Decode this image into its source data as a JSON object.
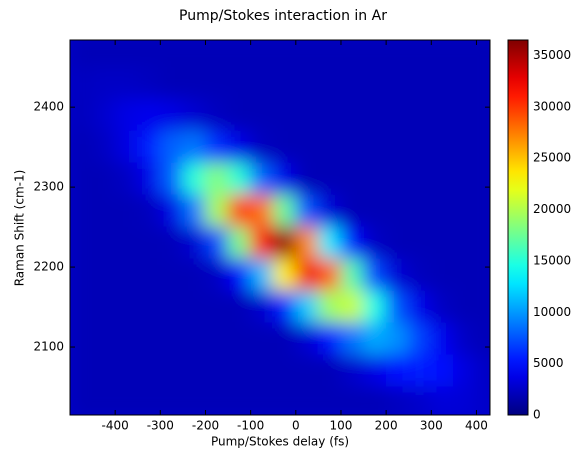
{
  "chart_data": {
    "type": "heatmap",
    "title": "Pump/Stokes interaction in Ar",
    "x_label": "Pump/Stokes delay (fs)",
    "y_label": "Raman Shift (cm-1)",
    "x": [
      -475,
      -425,
      -375,
      -325,
      -275,
      -225,
      -175,
      -125,
      -75,
      -25,
      25,
      75,
      125,
      175,
      225,
      275,
      325,
      375,
      425
    ],
    "y": [
      2470,
      2430,
      2390,
      2350,
      2310,
      2270,
      2230,
      2190,
      2150,
      2110,
      2070,
      2030
    ],
    "z": [
      [
        2000,
        2000,
        2000,
        2000,
        2000,
        2000,
        2000,
        2000,
        2000,
        2000,
        2000,
        2000,
        2000,
        2000,
        2000,
        2000,
        2000,
        2000,
        2000
      ],
      [
        2300,
        2500,
        2500,
        2300,
        2000,
        2000,
        2000,
        2000,
        2000,
        2000,
        2000,
        2000,
        2000,
        2000,
        2000,
        2000,
        2000,
        2000,
        2000
      ],
      [
        2200,
        2800,
        3600,
        3900,
        3600,
        2900,
        2300,
        2000,
        2000,
        2000,
        2000,
        2000,
        2000,
        2000,
        2000,
        2000,
        2000,
        2000,
        2000
      ],
      [
        2000,
        2400,
        3500,
        5500,
        8000,
        8800,
        6200,
        3700,
        2300,
        2000,
        2000,
        2000,
        2000,
        2000,
        2000,
        2000,
        2000,
        2000,
        2000
      ],
      [
        2000,
        2000,
        2400,
        3700,
        8000,
        15000,
        18400,
        15200,
        8300,
        3800,
        2000,
        2000,
        2000,
        2000,
        2000,
        2000,
        2000,
        2000,
        2000
      ],
      [
        2000,
        2000,
        2000,
        2200,
        3600,
        8800,
        19600,
        30000,
        28000,
        17400,
        7600,
        3200,
        2000,
        2000,
        2000,
        2000,
        2000,
        2000,
        2000
      ],
      [
        2000,
        2000,
        2000,
        2000,
        2100,
        2900,
        7000,
        18000,
        31700,
        36000,
        27000,
        13000,
        5000,
        2500,
        2000,
        2000,
        2000,
        2000,
        2000
      ],
      [
        2000,
        2000,
        2000,
        2000,
        2000,
        2000,
        2400,
        4500,
        11200,
        23300,
        32400,
        28500,
        16600,
        7100,
        3100,
        2200,
        2000,
        2000,
        2000
      ],
      [
        2000,
        2000,
        2000,
        2000,
        2000,
        2000,
        2000,
        2000,
        2800,
        5500,
        11900,
        19300,
        20800,
        14600,
        7500,
        3800,
        2400,
        2000,
        2000
      ],
      [
        2000,
        2000,
        2000,
        2000,
        2000,
        2000,
        2000,
        2000,
        2000,
        2000,
        2900,
        5000,
        8600,
        10600,
        9700,
        6800,
        4000,
        2500,
        2000
      ],
      [
        2000,
        2000,
        2000,
        2000,
        2000,
        2000,
        2000,
        2000,
        2000,
        2000,
        2000,
        2000,
        2700,
        3600,
        4900,
        5500,
        4900,
        3400,
        2400
      ],
      [
        2000,
        2000,
        2000,
        2000,
        2000,
        2000,
        2000,
        2000,
        2000,
        2000,
        2000,
        2000,
        2000,
        2000,
        2300,
        2700,
        3200,
        3100,
        2600
      ]
    ],
    "xlim": [
      -500,
      430
    ],
    "ylim": [
      2015,
      2484
    ],
    "xticks": [
      -400,
      -300,
      -200,
      -100,
      0,
      100,
      200,
      300,
      400
    ],
    "yticks": [
      2100,
      2200,
      2300,
      2400
    ],
    "clim": [
      0,
      36500
    ],
    "cticks": [
      0,
      5000,
      10000,
      15000,
      20000,
      25000,
      30000,
      35000
    ],
    "colormap": "jet"
  }
}
